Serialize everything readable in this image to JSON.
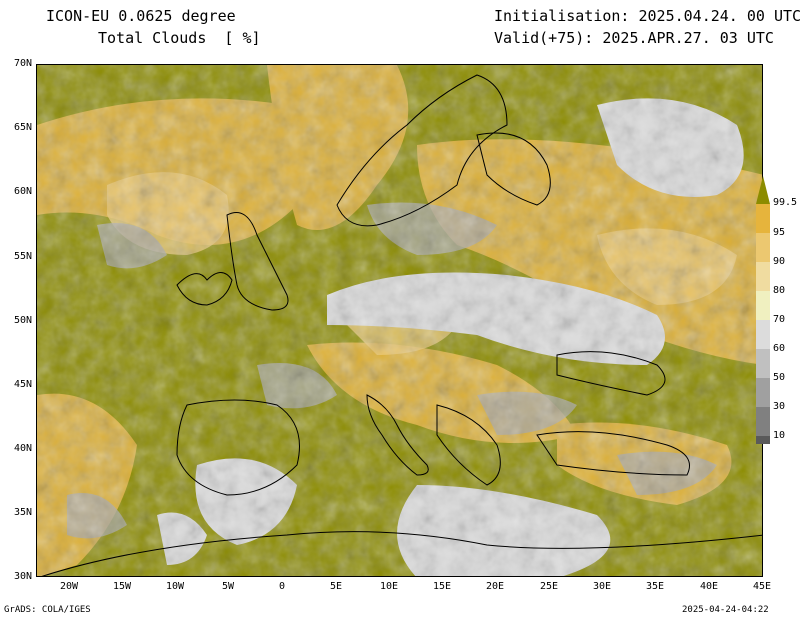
{
  "header": {
    "model_title": "ICON-EU 0.0625 degree",
    "variable": "Total Clouds  [ %]",
    "initialisation": "Initialisation: 2025.04.24. 00 UTC",
    "valid": "Valid(+75): 2025.APR.27. 03 UTC"
  },
  "axes": {
    "lat_labels": [
      "70N",
      "65N",
      "60N",
      "55N",
      "50N",
      "45N",
      "40N",
      "35N",
      "30N"
    ],
    "lon_labels": [
      "20W",
      "15W",
      "10W",
      "5W",
      "0",
      "5E",
      "10E",
      "15E",
      "20E",
      "25E",
      "30E",
      "35E",
      "40E",
      "45E"
    ]
  },
  "colorbar": {
    "labels": [
      "99.5",
      "95",
      "90",
      "80",
      "70",
      "60",
      "50",
      "30",
      "10"
    ],
    "colors": [
      "#8c8c00",
      "#e6b43c",
      "#ecc870",
      "#f0dca0",
      "#f0f0c0",
      "#dcdcdc",
      "#c0c0c0",
      "#a0a0a0",
      "#808080",
      "#5a5a5a"
    ]
  },
  "footer": {
    "left": "GrADS: COLA/IGES",
    "right": "2025-04-24-04:22"
  }
}
